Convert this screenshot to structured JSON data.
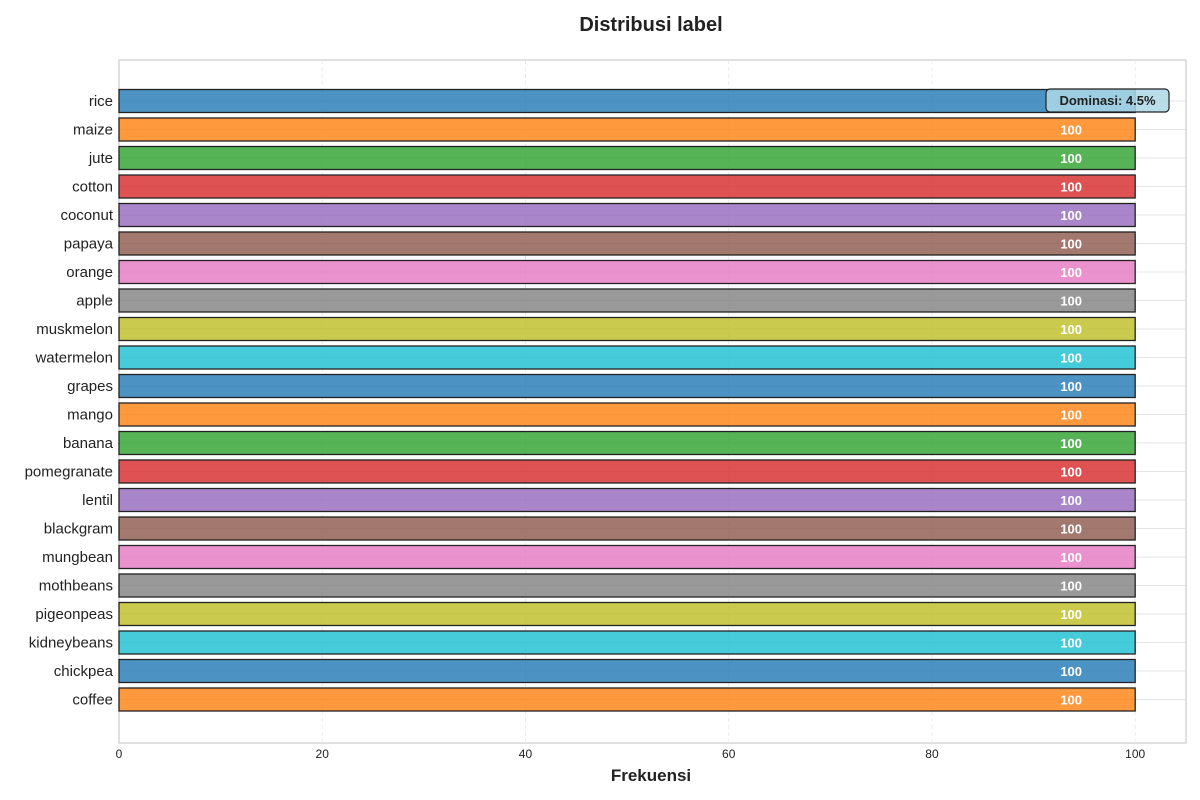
{
  "chart_data": {
    "type": "bar",
    "orientation": "horizontal",
    "title": "Distribusi label",
    "xlabel": "Frekuensi",
    "ylabel": "",
    "xlim": [
      0,
      105
    ],
    "xticks": [
      0,
      20,
      40,
      60,
      80,
      100
    ],
    "grid": true,
    "categories": [
      "rice",
      "maize",
      "jute",
      "cotton",
      "coconut",
      "papaya",
      "orange",
      "apple",
      "muskmelon",
      "watermelon",
      "grapes",
      "mango",
      "banana",
      "pomegranate",
      "lentil",
      "blackgram",
      "mungbean",
      "mothbeans",
      "pigeonpeas",
      "kidneybeans",
      "chickpea",
      "coffee"
    ],
    "values": [
      100,
      100,
      100,
      100,
      100,
      100,
      100,
      100,
      100,
      100,
      100,
      100,
      100,
      100,
      100,
      100,
      100,
      100,
      100,
      100,
      100,
      100
    ],
    "value_labels": [
      "",
      "100",
      "100",
      "100",
      "100",
      "100",
      "100",
      "100",
      "100",
      "100",
      "100",
      "100",
      "100",
      "100",
      "100",
      "100",
      "100",
      "100",
      "100",
      "100",
      "100",
      "100"
    ],
    "colors": [
      "#1f77b4",
      "#ff7f0e",
      "#2ca02c",
      "#d62728",
      "#9467bd",
      "#8c564b",
      "#e377c2",
      "#7f7f7f",
      "#bcbd22",
      "#17becf"
    ],
    "annotation": {
      "text": "Dominasi: 4.5%",
      "background": "#add8e6"
    }
  }
}
